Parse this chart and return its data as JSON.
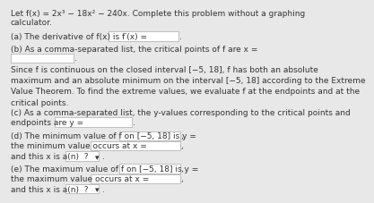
{
  "bg_color": "#e8e8e8",
  "title_line1": "Let f(x) = 2x³ − 18x² − 240x. Complete this problem without a graphing",
  "title_line2": "calculator.",
  "a_label": "(a) The derivative of f(x) is f′(x) =",
  "b_label": "(b) As a comma-separated list, the critical points of f are x =",
  "para": "Since f is continuous on the closed interval [−5, 18], f has both an absolute\nmaximum and an absolute minimum on the interval [−5, 18] according to the Extreme\nValue Theorem. To find the extreme values, we evaluate f at the endpoints and at the\ncritical points.",
  "c_label1": "(c) As a comma-separated list, the y-values corresponding to the critical points and",
  "c_label2": "endpoints are y =",
  "d_label1": "(d) The minimum value of f on [−5, 18] is y =",
  "d_label2": "the minimum value occurs at x =",
  "d_label3": "and this x is a(n)  ?",
  "e_label1": "(e) The maximum value of f on [−5, 18] is y =",
  "e_label2": "the maximum value occurs at x =",
  "e_label3": "and this x is a(n)  ?",
  "font_size": 6.5,
  "text_color": "#333333",
  "box_color": "#ffffff",
  "box_edge_color": "#aaaaaa"
}
